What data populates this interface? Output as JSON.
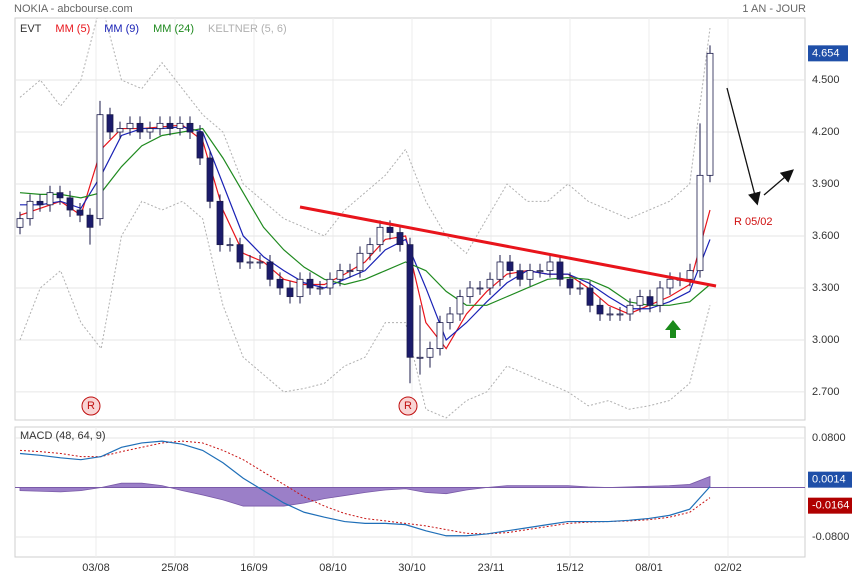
{
  "header": {
    "title": "NOKIA - abcbourse.com",
    "period": "1 AN - JOUR"
  },
  "chart_data": [
    {
      "type": "candlestick",
      "name": "EVT",
      "up_color": "#ffffff",
      "down_color": "#1b1b6b",
      "open": [
        3.65,
        3.7,
        3.8,
        3.78,
        3.85,
        3.82,
        3.75,
        3.72,
        3.7,
        4.3,
        4.2,
        4.22,
        4.25,
        4.2,
        4.22,
        4.25,
        4.22,
        4.25,
        4.2,
        4.05,
        3.8,
        3.55,
        3.55,
        3.45,
        3.45,
        3.45,
        3.35,
        3.3,
        3.25,
        3.35,
        3.3,
        3.3,
        3.35,
        3.4,
        3.4,
        3.5,
        3.55,
        3.65,
        3.62,
        3.55,
        2.9,
        2.9,
        2.95,
        3.1,
        3.15,
        3.25,
        3.3,
        3.3,
        3.35,
        3.45,
        3.4,
        3.35,
        3.4,
        3.4,
        3.45,
        3.35,
        3.3,
        3.3,
        3.2,
        3.15,
        3.15,
        3.15,
        3.2,
        3.25,
        3.2,
        3.3,
        3.35,
        3.35,
        3.4,
        3.95
      ],
      "high": [
        3.74,
        3.84,
        3.84,
        3.89,
        3.89,
        3.86,
        3.79,
        3.76,
        4.38,
        4.34,
        4.26,
        4.29,
        4.29,
        4.26,
        4.29,
        4.29,
        4.29,
        4.29,
        4.24,
        4.09,
        3.84,
        3.59,
        3.59,
        3.49,
        3.49,
        3.49,
        3.39,
        3.34,
        3.39,
        3.39,
        3.34,
        3.39,
        3.44,
        3.44,
        3.54,
        3.59,
        3.69,
        3.69,
        3.66,
        3.59,
        3.2,
        2.99,
        3.14,
        3.19,
        3.29,
        3.34,
        3.34,
        3.39,
        3.49,
        3.49,
        3.44,
        3.44,
        3.44,
        3.49,
        3.49,
        3.39,
        3.34,
        3.34,
        3.24,
        3.19,
        3.19,
        3.24,
        3.29,
        3.29,
        3.34,
        3.39,
        3.39,
        3.44,
        4.25,
        4.7
      ],
      "low": [
        3.61,
        3.66,
        3.74,
        3.74,
        3.78,
        3.71,
        3.68,
        3.55,
        3.66,
        4.16,
        4.16,
        4.18,
        4.16,
        4.16,
        4.18,
        4.18,
        4.18,
        4.16,
        4.01,
        3.76,
        3.51,
        3.51,
        3.41,
        3.41,
        3.41,
        3.31,
        3.26,
        3.21,
        3.21,
        3.26,
        3.26,
        3.26,
        3.31,
        3.36,
        3.36,
        3.46,
        3.51,
        3.58,
        3.51,
        2.75,
        2.8,
        2.84,
        2.91,
        3.06,
        3.11,
        3.21,
        3.26,
        3.26,
        3.31,
        3.36,
        3.31,
        3.31,
        3.36,
        3.36,
        3.31,
        3.26,
        3.26,
        3.16,
        3.11,
        3.11,
        3.11,
        3.11,
        3.16,
        3.16,
        3.16,
        3.26,
        3.31,
        3.31,
        3.36,
        3.91
      ],
      "close": [
        3.7,
        3.8,
        3.78,
        3.85,
        3.82,
        3.75,
        3.72,
        3.65,
        4.3,
        4.2,
        4.22,
        4.25,
        4.2,
        4.22,
        4.25,
        4.22,
        4.25,
        4.2,
        4.05,
        3.8,
        3.55,
        3.55,
        3.45,
        3.45,
        3.45,
        3.35,
        3.3,
        3.25,
        3.35,
        3.3,
        3.3,
        3.35,
        3.4,
        3.4,
        3.5,
        3.55,
        3.65,
        3.62,
        3.55,
        2.9,
        2.9,
        2.95,
        3.1,
        3.15,
        3.25,
        3.3,
        3.3,
        3.35,
        3.45,
        3.4,
        3.35,
        3.4,
        3.4,
        3.45,
        3.35,
        3.3,
        3.3,
        3.2,
        3.15,
        3.15,
        3.15,
        3.2,
        3.25,
        3.2,
        3.3,
        3.35,
        3.35,
        3.4,
        3.95,
        4.654
      ],
      "series": [
        {
          "name": "MM (5)",
          "color": "#e8141b",
          "values": [
            3.72,
            3.76,
            3.8,
            3.72,
            4.1,
            4.22,
            4.22,
            4.23,
            4.24,
            4.15,
            3.75,
            3.5,
            3.45,
            3.35,
            3.32,
            3.32,
            3.38,
            3.45,
            3.58,
            3.6,
            3.1,
            2.95,
            3.15,
            3.28,
            3.38,
            3.4,
            3.38,
            3.38,
            3.3,
            3.2,
            3.15,
            3.2,
            3.25,
            3.32,
            3.75
          ]
        },
        {
          "name": "MM (9)",
          "color": "#1a22b5",
          "values": [
            3.78,
            3.78,
            3.8,
            3.76,
            3.95,
            4.18,
            4.22,
            4.22,
            4.23,
            4.2,
            3.9,
            3.6,
            3.48,
            3.4,
            3.33,
            3.3,
            3.35,
            3.4,
            3.52,
            3.58,
            3.3,
            3.0,
            3.1,
            3.22,
            3.33,
            3.4,
            3.38,
            3.38,
            3.33,
            3.25,
            3.18,
            3.18,
            3.22,
            3.28,
            3.58
          ]
        },
        {
          "name": "MM (24)",
          "color": "#1f8a1f",
          "values": [
            3.85,
            3.84,
            3.84,
            3.82,
            3.85,
            4.0,
            4.12,
            4.18,
            4.2,
            4.22,
            4.05,
            3.85,
            3.65,
            3.52,
            3.42,
            3.35,
            3.32,
            3.35,
            3.4,
            3.45,
            3.4,
            3.28,
            3.2,
            3.2,
            3.25,
            3.3,
            3.35,
            3.36,
            3.35,
            3.3,
            3.22,
            3.2,
            3.2,
            3.22,
            3.32
          ]
        }
      ],
      "bands": {
        "name": "KELTNER (5, 6)",
        "color": "#b0b0b0",
        "upper": [
          4.4,
          4.5,
          4.35,
          4.5,
          4.95,
          4.5,
          4.45,
          4.6,
          4.45,
          4.3,
          4.2,
          3.9,
          3.8,
          3.7,
          3.65,
          3.6,
          3.75,
          3.85,
          3.95,
          4.1,
          3.8,
          3.6,
          3.5,
          3.7,
          3.9,
          3.8,
          3.8,
          3.9,
          3.8,
          3.75,
          3.7,
          3.75,
          3.8,
          3.9,
          4.8
        ],
        "lower": [
          3.0,
          3.3,
          3.4,
          3.1,
          2.95,
          3.6,
          3.8,
          3.75,
          3.8,
          3.7,
          3.2,
          2.9,
          2.8,
          2.7,
          2.72,
          2.75,
          2.85,
          2.9,
          3.1,
          3.1,
          2.6,
          2.55,
          2.65,
          2.7,
          2.85,
          2.8,
          2.75,
          2.7,
          2.62,
          2.65,
          2.6,
          2.62,
          2.65,
          2.75,
          3.2
        ]
      },
      "ylim": [
        2.538,
        4.858
      ],
      "yticks": [
        {
          "value": 2.7,
          "label": "2.700"
        },
        {
          "value": 3.0,
          "label": "3.000"
        },
        {
          "value": 3.3,
          "label": "3.300"
        },
        {
          "value": 3.6,
          "label": "3.600"
        },
        {
          "value": 3.9,
          "label": "3.900"
        },
        {
          "value": 4.2,
          "label": "4.200"
        },
        {
          "value": 4.5,
          "label": "4.500"
        }
      ],
      "xtick_labels": [
        "03/08",
        "25/08",
        "16/09",
        "08/10",
        "30/10",
        "23/11",
        "15/12",
        "08/01",
        "02/02"
      ],
      "markers": [
        "R",
        "R"
      ],
      "annotation": "R 05/02",
      "grid": true
    },
    {
      "type": "macd",
      "title": "MACD (48, 64, 9)",
      "macd": {
        "color": "#1f6fb8",
        "values": [
          0.055,
          0.052,
          0.048,
          0.045,
          0.05,
          0.065,
          0.072,
          0.075,
          0.07,
          0.06,
          0.04,
          0.015,
          -0.005,
          -0.025,
          -0.04,
          -0.048,
          -0.055,
          -0.058,
          -0.058,
          -0.06,
          -0.07,
          -0.078,
          -0.078,
          -0.075,
          -0.07,
          -0.065,
          -0.06,
          -0.055,
          -0.055,
          -0.055,
          -0.053,
          -0.05,
          -0.045,
          -0.035,
          0.0014
        ]
      },
      "signal": {
        "color": "#c81414",
        "values": [
          0.06,
          0.058,
          0.055,
          0.05,
          0.05,
          0.058,
          0.065,
          0.072,
          0.075,
          0.072,
          0.06,
          0.045,
          0.025,
          0.005,
          -0.015,
          -0.03,
          -0.042,
          -0.05,
          -0.054,
          -0.058,
          -0.062,
          -0.068,
          -0.074,
          -0.075,
          -0.073,
          -0.068,
          -0.063,
          -0.058,
          -0.056,
          -0.055,
          -0.054,
          -0.052,
          -0.048,
          -0.04,
          -0.0164
        ]
      },
      "histogram": {
        "color": "#9b7fc8",
        "values": [
          -0.005,
          -0.006,
          -0.007,
          -0.005,
          0,
          0.007,
          0.007,
          0.003,
          -0.005,
          -0.012,
          -0.02,
          -0.03,
          -0.03,
          -0.03,
          -0.025,
          -0.018,
          -0.013,
          -0.008,
          -0.004,
          -0.002,
          -0.008,
          -0.01,
          -0.004,
          0,
          0.003,
          0.003,
          0.003,
          0.003,
          0.001,
          0,
          0.001,
          0.002,
          0.003,
          0.005,
          0.0178
        ]
      },
      "ylim": [
        -0.1123,
        0.0978
      ],
      "yticks": [
        {
          "value": 0.08,
          "label": "0.0800"
        },
        {
          "value": -0.08,
          "label": "-0.0800"
        }
      ],
      "grid": true
    }
  ]
}
